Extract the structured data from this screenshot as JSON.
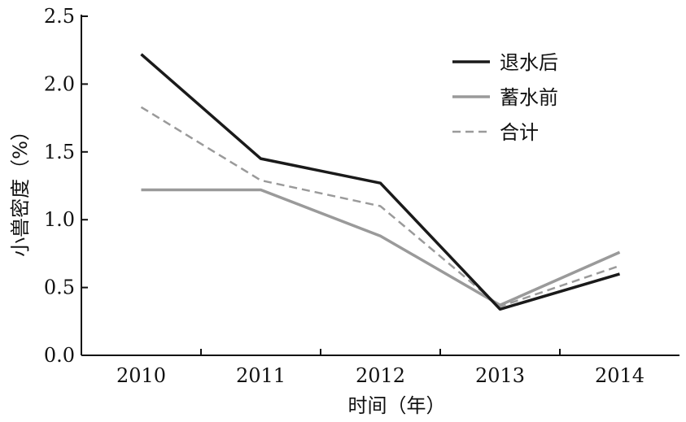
{
  "chart_data": {
    "type": "line",
    "xlabel": "时间（年）",
    "ylabel": "小兽密度（%）",
    "categories": [
      "2010",
      "2011",
      "2012",
      "2013",
      "2014"
    ],
    "ylim": [
      0,
      2.5
    ],
    "yticks": [
      "0.0",
      "0.5",
      "1.0",
      "1.5",
      "2.0",
      "2.5"
    ],
    "grid": false,
    "legend_position": "top-right",
    "series": [
      {
        "name": "退水后",
        "values": [
          2.22,
          1.45,
          1.27,
          0.34,
          0.6
        ],
        "color": "#1a1a1a",
        "dash": "solid"
      },
      {
        "name": "蓄水前",
        "values": [
          1.22,
          1.22,
          0.88,
          0.37,
          0.76
        ],
        "color": "#9a9a9a",
        "dash": "solid"
      },
      {
        "name": "合计",
        "values": [
          1.83,
          1.29,
          1.1,
          0.36,
          0.66
        ],
        "color": "#9a9a9a",
        "dash": "dashed"
      }
    ]
  }
}
